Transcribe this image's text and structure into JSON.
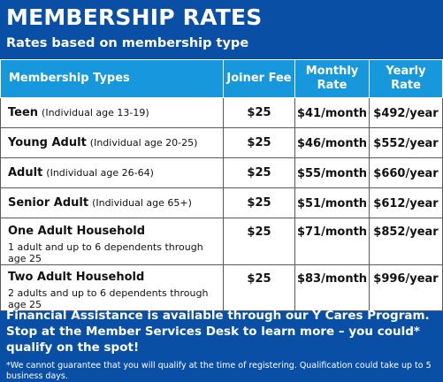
{
  "header": {
    "title": "MEMBERSHIP RATES",
    "subtitle": "Rates based on membership type"
  },
  "table": {
    "headers": {
      "type": "Membership Types",
      "fee": "Joiner Fee",
      "monthly_line1": "Monthly",
      "monthly_line2": "Rate",
      "yearly_line1": "Yearly",
      "yearly_line2": "Rate"
    },
    "rows": [
      {
        "name": "Teen",
        "detail": "(Individual age 13-19)",
        "fee": "$25",
        "monthly": "$41/month",
        "yearly": "$492/year"
      },
      {
        "name": "Young Adult",
        "detail": "(Individual age 20-25)",
        "fee": "$25",
        "monthly": "$46/month",
        "yearly": "$552/year"
      },
      {
        "name": "Adult",
        "detail": "(Individual age 26-64)",
        "fee": "$25",
        "monthly": "$55/month",
        "yearly": "$660/year"
      },
      {
        "name": "Senior Adult",
        "detail": "(Individual age 65+)",
        "fee": "$25",
        "monthly": "$51/month",
        "yearly": "$612/year"
      },
      {
        "name": "One Adult Household",
        "detail": "1 adult and up to 6 dependents through age 25",
        "fee": "$25",
        "monthly": "$71/month",
        "yearly": "$852/year"
      },
      {
        "name": "Two Adult Household",
        "detail": "2 adults and up to 6 dependents through age 25",
        "fee": "$25",
        "monthly": "$83/month",
        "yearly": "$996/year"
      }
    ]
  },
  "footer": {
    "assistance": "Financial Assistance is available through our Y Cares Program. Stop at the Member Services Desk to learn more – you could* qualify on the spot!",
    "disclaimer": "*We cannot guarantee that you will qualify at the time of registering. Qualification could take up to 5 business days."
  },
  "colors": {
    "background": "#0a4fa6",
    "header_cell": "#1798dc",
    "cell_background": "#ffffff",
    "cell_text": "#111111"
  }
}
